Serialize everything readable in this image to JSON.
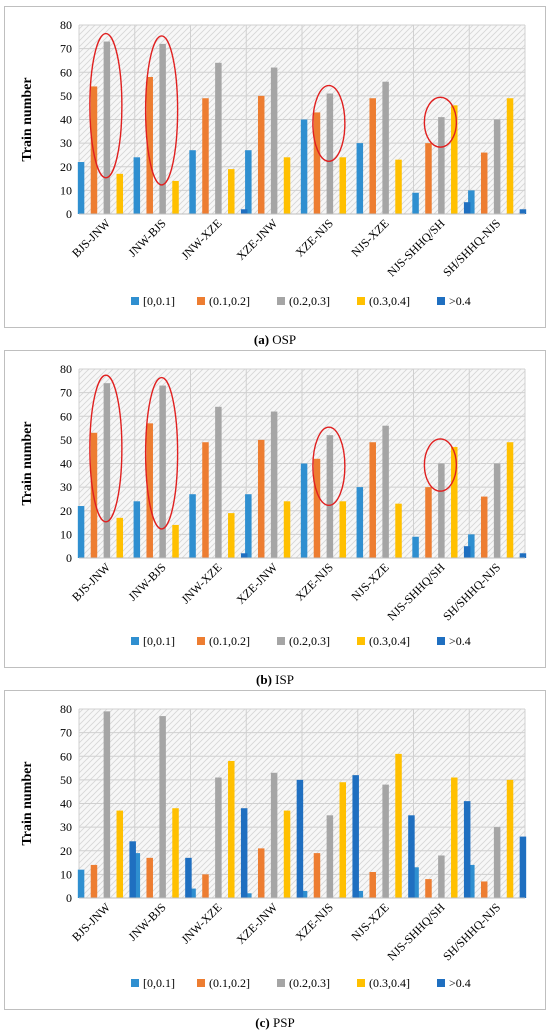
{
  "colors": {
    "[0,0.1]": "#2f8fd0",
    "(0.1,0.2]": "#ed7d31",
    "(0.2,0.3]": "#a5a5a5",
    "(0.3,0.4]": "#ffc000",
    ">0.4": "#1f6fc0",
    "highlight": "#e02020"
  },
  "chart_data": [
    {
      "type": "bar",
      "panel_label": "(a)",
      "caption_text": "OSP",
      "ylabel": "Train number",
      "ylim": [
        0,
        80
      ],
      "yticks": [
        0,
        10,
        20,
        30,
        40,
        50,
        60,
        70,
        80
      ],
      "grid": true,
      "legend_position": "bottom",
      "categories": [
        "BJS-JNW",
        "JNW-BJS",
        "JNW-XZE",
        "XZE-JNW",
        "XZE-NJS",
        "NJS-XZE",
        "NJS-SHHQ/SH",
        "SH/SHHQ-NJS"
      ],
      "series": [
        {
          "name": "[0,0.1]",
          "values": [
            22,
            24,
            27,
            27,
            40,
            30,
            9,
            10
          ]
        },
        {
          "name": "(0.1,0.2]",
          "values": [
            54,
            58,
            49,
            50,
            43,
            49,
            30,
            26
          ]
        },
        {
          "name": "(0.2,0.3]",
          "values": [
            73,
            72,
            64,
            62,
            51,
            56,
            41,
            40
          ]
        },
        {
          "name": "(0.3,0.4]",
          "values": [
            17,
            14,
            19,
            24,
            24,
            23,
            46,
            49
          ]
        },
        {
          "name": ">0.4",
          "values": [
            0,
            0,
            2,
            0,
            0,
            0,
            5,
            2
          ]
        }
      ],
      "highlighted_categories": [
        "BJS-JNW",
        "JNW-BJS",
        "XZE-NJS",
        "NJS-SHHQ/SH"
      ]
    },
    {
      "type": "bar",
      "panel_label": "(b)",
      "caption_text": "ISP",
      "ylabel": "Train number",
      "ylim": [
        0,
        80
      ],
      "yticks": [
        0,
        10,
        20,
        30,
        40,
        50,
        60,
        70,
        80
      ],
      "grid": true,
      "legend_position": "bottom",
      "categories": [
        "BJS-JNW",
        "JNW-BJS",
        "JNW-XZE",
        "XZE-JNW",
        "XZE-NJS",
        "NJS-XZE",
        "NJS-SHHQ/SH",
        "SH/SHHQ-NJS"
      ],
      "series": [
        {
          "name": "[0,0.1]",
          "values": [
            22,
            24,
            27,
            27,
            40,
            30,
            9,
            10
          ]
        },
        {
          "name": "(0.1,0.2]",
          "values": [
            53,
            57,
            49,
            50,
            42,
            49,
            30,
            26
          ]
        },
        {
          "name": "(0.2,0.3]",
          "values": [
            74,
            73,
            64,
            62,
            52,
            56,
            40,
            40
          ]
        },
        {
          "name": "(0.3,0.4]",
          "values": [
            17,
            14,
            19,
            24,
            24,
            23,
            47,
            49
          ]
        },
        {
          "name": ">0.4",
          "values": [
            0,
            0,
            2,
            0,
            0,
            0,
            5,
            2
          ]
        }
      ],
      "highlighted_categories": [
        "BJS-JNW",
        "JNW-BJS",
        "XZE-NJS",
        "NJS-SHHQ/SH"
      ]
    },
    {
      "type": "bar",
      "panel_label": "(c)",
      "caption_text": "PSP",
      "ylabel": "Train number",
      "ylim": [
        0,
        80
      ],
      "yticks": [
        0,
        10,
        20,
        30,
        40,
        50,
        60,
        70,
        80
      ],
      "grid": true,
      "legend_position": "bottom",
      "categories": [
        "BJS-JNW",
        "JNW-BJS",
        "JNW-XZE",
        "XZE-JNW",
        "XZE-NJS",
        "NJS-XZE",
        "NJS-SHHQ/SH",
        "SH/SHHQ-NJS"
      ],
      "series": [
        {
          "name": "[0,0.1]",
          "values": [
            12,
            19,
            4,
            2,
            3,
            3,
            13,
            14
          ]
        },
        {
          "name": "(0.1,0.2]",
          "values": [
            14,
            17,
            10,
            21,
            19,
            11,
            8,
            7
          ]
        },
        {
          "name": "(0.2,0.3]",
          "values": [
            79,
            77,
            51,
            53,
            35,
            48,
            18,
            30
          ]
        },
        {
          "name": "(0.3,0.4]",
          "values": [
            37,
            38,
            58,
            37,
            49,
            61,
            51,
            50
          ]
        },
        {
          "name": ">0.4",
          "values": [
            24,
            17,
            38,
            50,
            52,
            35,
            41,
            26
          ]
        }
      ],
      "highlighted_categories": []
    }
  ]
}
